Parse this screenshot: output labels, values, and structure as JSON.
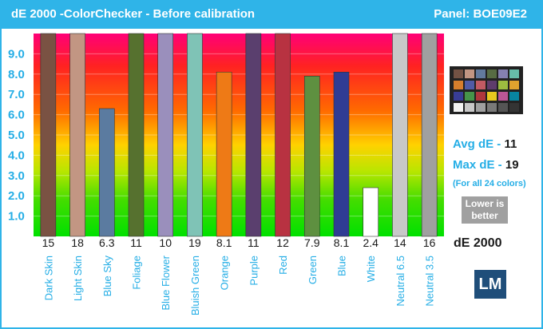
{
  "header": {
    "title": "dE 2000 -ColorChecker - Before calibration",
    "panel": "Panel: BOE09E2"
  },
  "chart_data": {
    "type": "bar",
    "categories": [
      "Dark Skin",
      "Light Skin",
      "Blue Sky",
      "Foliage",
      "Blue Flower",
      "Bluish Green",
      "Orange",
      "Purple",
      "Red",
      "Green",
      "Blue",
      "White",
      "Neutral 6.5",
      "Neutral 3.5"
    ],
    "values": [
      15,
      18,
      6.3,
      11,
      10,
      19,
      8.1,
      11,
      12,
      7.9,
      8.1,
      2.4,
      14,
      16
    ],
    "value_labels": [
      "15",
      "18",
      "6.3",
      "11",
      "10",
      "19",
      "8.1",
      "11",
      "12",
      "7.9",
      "8.1",
      "2.4",
      "14",
      "16"
    ],
    "colors": [
      "#7a5243",
      "#c29683",
      "#5b7ba0",
      "#56712f",
      "#9a8fbc",
      "#7fc3b6",
      "#ee7a16",
      "#5a3f6e",
      "#b83241",
      "#5e9040",
      "#2f3c94",
      "#ffffff",
      "#c8c8c8",
      "#a0a0a0"
    ],
    "y_ticks": [
      "1.0",
      "2.0",
      "3.0",
      "4.0",
      "5.0",
      "6.0",
      "7.0",
      "8.0",
      "9.0"
    ],
    "ylim": [
      0,
      10
    ],
    "unit_label": "dE 2000"
  },
  "stats": {
    "avg_label": "Avg dE - ",
    "avg_value": "11",
    "max_label": "Max dE - ",
    "max_value": "19",
    "note": "(For all 24 colors)",
    "lower_is_better": "Lower is better"
  },
  "logo_text": "LM",
  "colorchecker_icon": "colorchecker-chart-icon",
  "colorchecker_patches": [
    "#735244",
    "#c29682",
    "#627a9d",
    "#576c43",
    "#8580b1",
    "#67bdaa",
    "#d67e2c",
    "#505ba6",
    "#c15a63",
    "#5e3c6c",
    "#9dbc40",
    "#e0a32e",
    "#383d96",
    "#469449",
    "#af363c",
    "#e7c71f",
    "#bb5695",
    "#0885a1",
    "#f3f3f2",
    "#c8c8c8",
    "#a0a0a0",
    "#7a7a79",
    "#555555",
    "#343434"
  ]
}
